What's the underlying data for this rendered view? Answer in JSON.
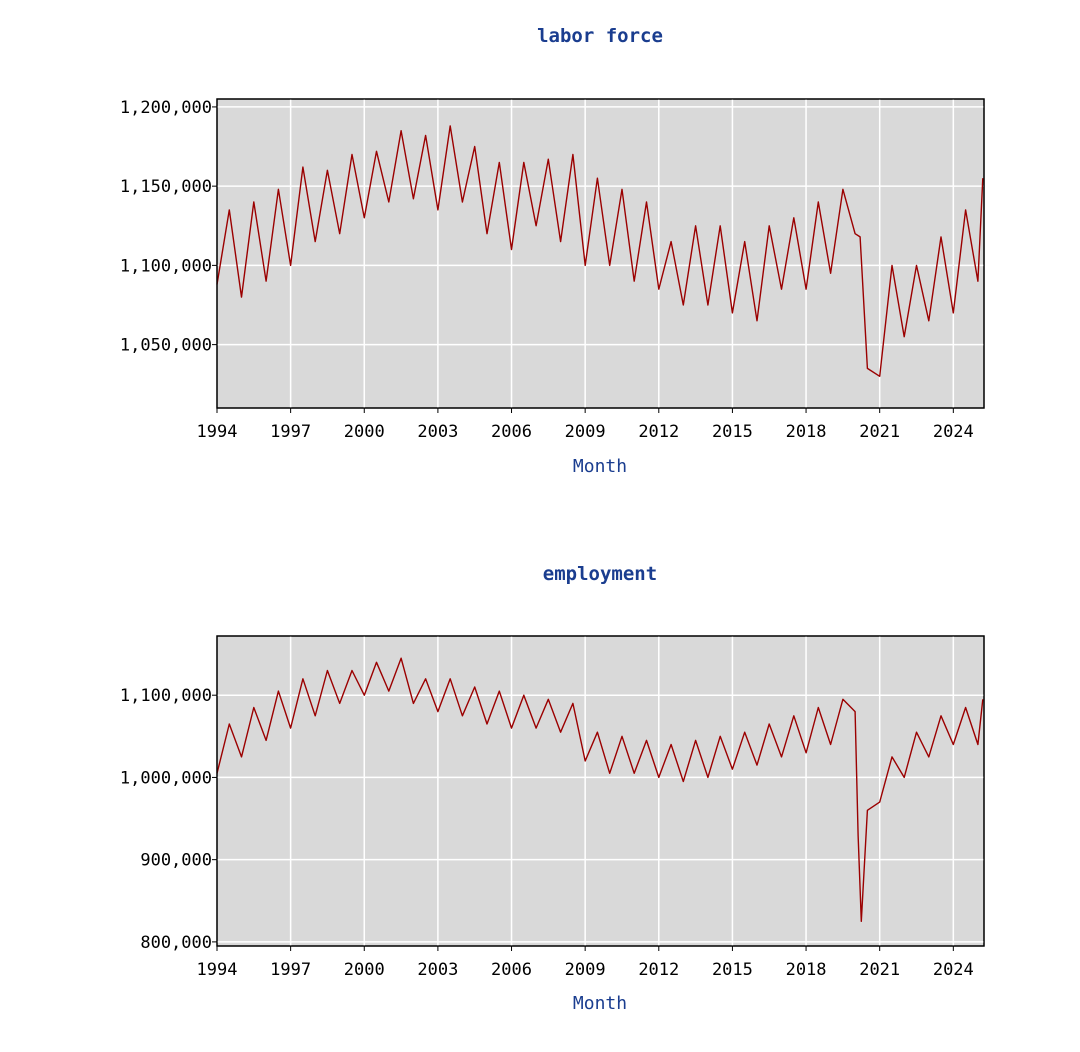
{
  "colors": {
    "series": "#9b0000",
    "background": "#d9d9d9",
    "grid": "#ffffff",
    "title": "#1a3d8f"
  },
  "chart_data": [
    {
      "type": "line",
      "title": "labor force",
      "xlabel": "Month",
      "ylabel": "",
      "grid": true,
      "xlim": [
        1994,
        2025.25
      ],
      "ylim": [
        1010000,
        1205000
      ],
      "x_ticks": [
        1994,
        1997,
        2000,
        2003,
        2006,
        2009,
        2012,
        2015,
        2018,
        2021,
        2024
      ],
      "x_tick_labels": [
        "1994",
        "1997",
        "2000",
        "2003",
        "2006",
        "2009",
        "2012",
        "2015",
        "2018",
        "2021",
        "2024"
      ],
      "y_ticks": [
        1050000,
        1100000,
        1150000,
        1200000
      ],
      "y_tick_labels": [
        "1,050,000",
        "1,100,000",
        "1,150,000",
        "1,200,000"
      ],
      "series": [
        {
          "x": [
            1994.0,
            1994.5,
            1995.0,
            1995.5,
            1996.0,
            1996.5,
            1997.0,
            1997.5,
            1998.0,
            1998.5,
            1999.0,
            1999.5,
            2000.0,
            2000.5,
            2001.0,
            2001.5,
            2002.0,
            2002.5,
            2003.0,
            2003.5,
            2004.0,
            2004.5,
            2005.0,
            2005.5,
            2006.0,
            2006.5,
            2007.0,
            2007.5,
            2008.0,
            2008.5,
            2009.0,
            2009.5,
            2010.0,
            2010.5,
            2011.0,
            2011.5,
            2012.0,
            2012.5,
            2013.0,
            2013.5,
            2014.0,
            2014.5,
            2015.0,
            2015.5,
            2016.0,
            2016.5,
            2017.0,
            2017.5,
            2018.0,
            2018.5,
            2019.0,
            2019.5,
            2020.0,
            2020.2,
            2020.5,
            2021.0,
            2021.5,
            2022.0,
            2022.5,
            2023.0,
            2023.5,
            2024.0,
            2024.5,
            2025.0,
            2025.2
          ],
          "values": [
            1088000,
            1135000,
            1080000,
            1140000,
            1090000,
            1148000,
            1100000,
            1162000,
            1115000,
            1160000,
            1120000,
            1170000,
            1130000,
            1172000,
            1140000,
            1185000,
            1142000,
            1182000,
            1135000,
            1188000,
            1140000,
            1175000,
            1120000,
            1165000,
            1110000,
            1165000,
            1125000,
            1167000,
            1115000,
            1170000,
            1100000,
            1155000,
            1100000,
            1148000,
            1090000,
            1140000,
            1085000,
            1115000,
            1075000,
            1125000,
            1075000,
            1125000,
            1070000,
            1115000,
            1065000,
            1125000,
            1085000,
            1130000,
            1085000,
            1140000,
            1095000,
            1148000,
            1120000,
            1118000,
            1035000,
            1030000,
            1100000,
            1055000,
            1100000,
            1065000,
            1118000,
            1070000,
            1135000,
            1090000,
            1155000
          ]
        }
      ]
    },
    {
      "type": "line",
      "title": "employment",
      "xlabel": "Month",
      "ylabel": "",
      "grid": true,
      "xlim": [
        1994,
        2025.25
      ],
      "ylim": [
        795000,
        1172000
      ],
      "x_ticks": [
        1994,
        1997,
        2000,
        2003,
        2006,
        2009,
        2012,
        2015,
        2018,
        2021,
        2024
      ],
      "x_tick_labels": [
        "1994",
        "1997",
        "2000",
        "2003",
        "2006",
        "2009",
        "2012",
        "2015",
        "2018",
        "2021",
        "2024"
      ],
      "y_ticks": [
        800000,
        900000,
        1000000,
        1100000
      ],
      "y_tick_labels": [
        "800,000",
        "900,000",
        "1,000,000",
        "1,100,000"
      ],
      "series": [
        {
          "x": [
            1994.0,
            1994.5,
            1995.0,
            1995.5,
            1996.0,
            1996.5,
            1997.0,
            1997.5,
            1998.0,
            1998.5,
            1999.0,
            1999.5,
            2000.0,
            2000.5,
            2001.0,
            2001.5,
            2002.0,
            2002.5,
            2003.0,
            2003.5,
            2004.0,
            2004.5,
            2005.0,
            2005.5,
            2006.0,
            2006.5,
            2007.0,
            2007.5,
            2008.0,
            2008.5,
            2009.0,
            2009.5,
            2010.0,
            2010.5,
            2011.0,
            2011.5,
            2012.0,
            2012.5,
            2013.0,
            2013.5,
            2014.0,
            2014.5,
            2015.0,
            2015.5,
            2016.0,
            2016.5,
            2017.0,
            2017.5,
            2018.0,
            2018.5,
            2019.0,
            2019.5,
            2020.0,
            2020.12,
            2020.25,
            2020.5,
            2021.0,
            2021.5,
            2022.0,
            2022.5,
            2023.0,
            2023.5,
            2024.0,
            2024.5,
            2025.0,
            2025.2
          ],
          "values": [
            1005000,
            1065000,
            1025000,
            1085000,
            1045000,
            1105000,
            1060000,
            1120000,
            1075000,
            1130000,
            1090000,
            1130000,
            1100000,
            1140000,
            1105000,
            1145000,
            1090000,
            1120000,
            1080000,
            1120000,
            1075000,
            1110000,
            1065000,
            1105000,
            1060000,
            1100000,
            1060000,
            1095000,
            1055000,
            1090000,
            1020000,
            1055000,
            1005000,
            1050000,
            1005000,
            1045000,
            1000000,
            1040000,
            995000,
            1045000,
            1000000,
            1050000,
            1010000,
            1055000,
            1015000,
            1065000,
            1025000,
            1075000,
            1030000,
            1085000,
            1040000,
            1095000,
            1080000,
            930000,
            825000,
            960000,
            970000,
            1025000,
            1000000,
            1055000,
            1025000,
            1075000,
            1040000,
            1085000,
            1040000,
            1095000
          ]
        }
      ]
    }
  ]
}
